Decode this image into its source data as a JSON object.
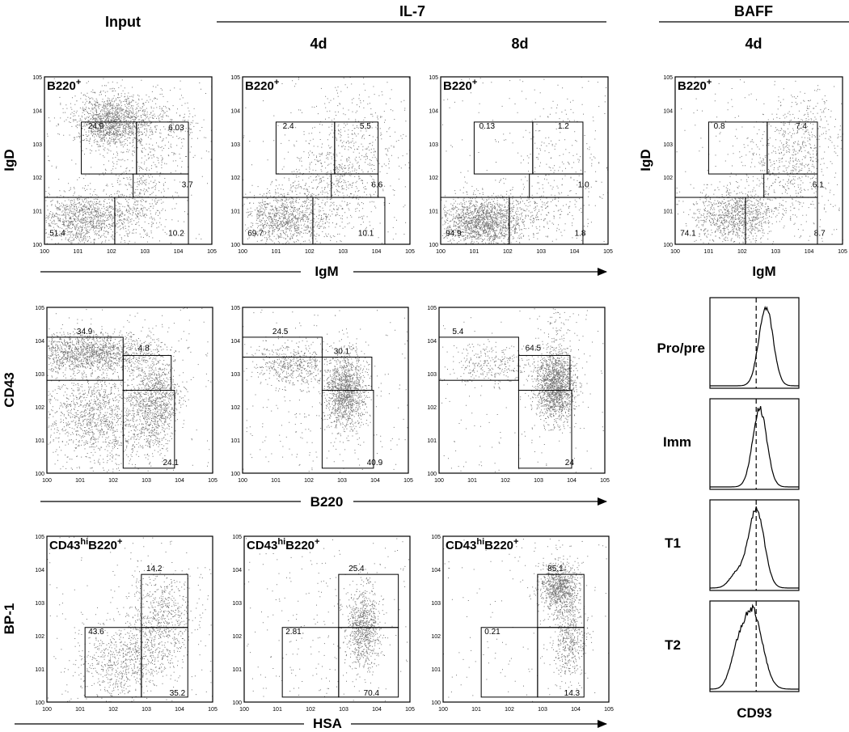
{
  "headers": {
    "input": "Input",
    "il7": "IL-7",
    "baff": "BAFF",
    "d4": "4d",
    "d8": "8d",
    "d4_baff": "4d"
  },
  "axes": {
    "row1_y": "IgD",
    "row1_x": "IgM",
    "row1_baff_y": "IgD",
    "row1_baff_x": "IgM",
    "row2_y": "CD43",
    "row2_x": "B220",
    "row3_y": "BP-1",
    "row3_x": "HSA",
    "hist_x": "CD93"
  },
  "gate_labels": {
    "row1": "B220+",
    "row3": "CD43hiB220+"
  },
  "histogram_labels": [
    "Pro/pre",
    "Imm",
    "T1",
    "T2"
  ],
  "chart_data": [
    {
      "type": "scatter",
      "name": "input-igd-igm",
      "gate_label": "B220+",
      "xlabel": "IgM",
      "ylabel": "IgD",
      "log_scale": true,
      "gates": [
        {
          "region": "IgD+ IgM-",
          "value": "24.9"
        },
        {
          "region": "IgD+ IgM+",
          "value": "6.03"
        },
        {
          "region": "IgD- IgM+ high",
          "value": "3.7"
        },
        {
          "region": "double negative",
          "value": "51.4"
        },
        {
          "region": "IgM+ IgD-",
          "value": "10.2"
        }
      ]
    },
    {
      "type": "scatter",
      "name": "il7-4d-igd-igm",
      "gate_label": "B220+",
      "xlabel": "IgM",
      "ylabel": "IgD",
      "log_scale": true,
      "gates": [
        {
          "region": "IgD+ IgM-",
          "value": "2.4"
        },
        {
          "region": "IgD+ IgM+",
          "value": "5.5"
        },
        {
          "region": "IgD- IgM+ high",
          "value": "6.6"
        },
        {
          "region": "double negative",
          "value": "69.7"
        },
        {
          "region": "IgM+ IgD-",
          "value": "10.1"
        }
      ]
    },
    {
      "type": "scatter",
      "name": "il7-8d-igd-igm",
      "gate_label": "B220+",
      "xlabel": "IgM",
      "ylabel": "IgD",
      "log_scale": true,
      "gates": [
        {
          "region": "IgD+ IgM-",
          "value": "0.13"
        },
        {
          "region": "IgD+ IgM+",
          "value": "1.2"
        },
        {
          "region": "IgD- IgM+ high",
          "value": "1.0"
        },
        {
          "region": "double negative",
          "value": "94.9"
        },
        {
          "region": "IgM+ IgD-",
          "value": "1.8"
        }
      ]
    },
    {
      "type": "scatter",
      "name": "baff-4d-igd-igm",
      "gate_label": "B220+",
      "xlabel": "IgM",
      "ylabel": "IgD",
      "log_scale": true,
      "gates": [
        {
          "region": "IgD+ IgM-",
          "value": "0.8"
        },
        {
          "region": "IgD+ IgM+",
          "value": "7.4"
        },
        {
          "region": "IgD- IgM+ high",
          "value": "6.1"
        },
        {
          "region": "double negative",
          "value": "74.1"
        },
        {
          "region": "IgM+ IgD-",
          "value": "8.7"
        }
      ]
    },
    {
      "type": "scatter",
      "name": "input-cd43-b220",
      "xlabel": "B220",
      "ylabel": "CD43",
      "log_scale": true,
      "gates": [
        {
          "region": "CD43hi B220lo",
          "value": "34.9"
        },
        {
          "region": "CD43hi B220+",
          "value": "4.8"
        },
        {
          "region": "CD43lo B220+",
          "value": "24.1"
        }
      ]
    },
    {
      "type": "scatter",
      "name": "il7-4d-cd43-b220",
      "xlabel": "B220",
      "ylabel": "CD43",
      "log_scale": true,
      "gates": [
        {
          "region": "CD43hi B220lo",
          "value": "24.5"
        },
        {
          "region": "CD43hi B220+",
          "value": "30.1"
        },
        {
          "region": "CD43lo B220+",
          "value": "40.9"
        }
      ]
    },
    {
      "type": "scatter",
      "name": "il7-8d-cd43-b220",
      "xlabel": "B220",
      "ylabel": "CD43",
      "log_scale": true,
      "gates": [
        {
          "region": "CD43hi B220lo",
          "value": "5.4"
        },
        {
          "region": "CD43hi B220+",
          "value": "64.5"
        },
        {
          "region": "CD43lo B220+",
          "value": "24"
        }
      ]
    },
    {
      "type": "scatter",
      "name": "input-bp1-hsa",
      "gate_label": "CD43hiB220+",
      "xlabel": "HSA",
      "ylabel": "BP-1",
      "log_scale": true,
      "gates": [
        {
          "region": "BP-1+ HSA+",
          "value": "14.2"
        },
        {
          "region": "BP-1- HSAlo",
          "value": "43.6"
        },
        {
          "region": "BP-1- HSA+",
          "value": "35.2"
        }
      ]
    },
    {
      "type": "scatter",
      "name": "il7-4d-bp1-hsa",
      "gate_label": "CD43hiB220+",
      "xlabel": "HSA",
      "ylabel": "BP-1",
      "log_scale": true,
      "gates": [
        {
          "region": "BP-1+ HSA+",
          "value": "25.4"
        },
        {
          "region": "BP-1- HSAlo",
          "value": "2.81"
        },
        {
          "region": "BP-1- HSA+",
          "value": "70.4"
        }
      ]
    },
    {
      "type": "scatter",
      "name": "il7-8d-bp1-hsa",
      "gate_label": "CD43hiB220+",
      "xlabel": "HSA",
      "ylabel": "BP-1",
      "log_scale": true,
      "gates": [
        {
          "region": "BP-1+ HSA+",
          "value": "85.1"
        },
        {
          "region": "BP-1- HSAlo",
          "value": "0.21"
        },
        {
          "region": "BP-1- HSA+",
          "value": "14.3"
        }
      ]
    },
    {
      "type": "line",
      "name": "cd93-histograms",
      "xlabel": "CD93",
      "series": [
        {
          "name": "Pro/pre"
        },
        {
          "name": "Imm"
        },
        {
          "name": "T1"
        },
        {
          "name": "T2"
        }
      ]
    }
  ]
}
